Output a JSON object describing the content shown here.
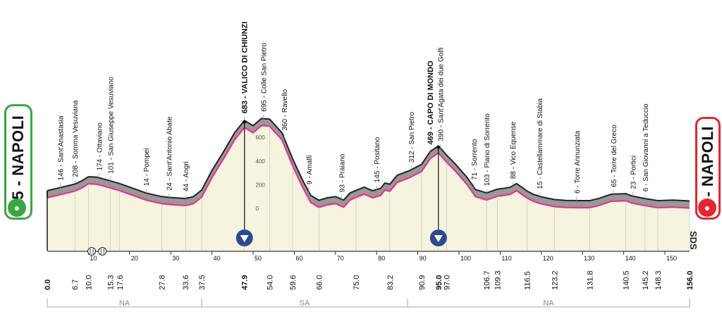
{
  "stage": {
    "start_label": "15 - NAPOLI",
    "finish_label": "3 - NAPOLI",
    "logo": "SDS"
  },
  "colors": {
    "profile_fill": "#999999",
    "profile_top": "#222222",
    "profile_body": "#f6f3df",
    "route_line": "#e8318f",
    "start_accent": "#3aa640",
    "finish_accent": "#e3262f",
    "marker": "#2c4a8f"
  },
  "chart_data": {
    "type": "area",
    "x_unit": "km",
    "x_ticks": [
      10,
      20,
      30,
      40,
      50,
      60,
      70,
      80,
      90,
      100,
      110,
      120,
      130,
      140,
      150
    ],
    "profile": [
      [
        0,
        90
      ],
      [
        3,
        115
      ],
      [
        6.7,
        146
      ],
      [
        8.5,
        175
      ],
      [
        10,
        208
      ],
      [
        12,
        205
      ],
      [
        15.3,
        174
      ],
      [
        17.6,
        150
      ],
      [
        20,
        120
      ],
      [
        24,
        70
      ],
      [
        27.8,
        40
      ],
      [
        30,
        32
      ],
      [
        33.6,
        24
      ],
      [
        35.5,
        40
      ],
      [
        37.5,
        95
      ],
      [
        40,
        260
      ],
      [
        43,
        430
      ],
      [
        45.5,
        580
      ],
      [
        47.9,
        683
      ],
      [
        50,
        640
      ],
      [
        52,
        700
      ],
      [
        54,
        695
      ],
      [
        57,
        580
      ],
      [
        59.6,
        360
      ],
      [
        62,
        180
      ],
      [
        64,
        50
      ],
      [
        66,
        9
      ],
      [
        68,
        30
      ],
      [
        70,
        40
      ],
      [
        72,
        10
      ],
      [
        73.5,
        70
      ],
      [
        75,
        93
      ],
      [
        77,
        120
      ],
      [
        79,
        90
      ],
      [
        81,
        110
      ],
      [
        82,
        155
      ],
      [
        83.2,
        145
      ],
      [
        85,
        220
      ],
      [
        88,
        260
      ],
      [
        90.9,
        312
      ],
      [
        93,
        420
      ],
      [
        95,
        469
      ],
      [
        97,
        390
      ],
      [
        99,
        320
      ],
      [
        102,
        200
      ],
      [
        104,
        100
      ],
      [
        106.7,
        71
      ],
      [
        109.3,
        103
      ],
      [
        111,
        110
      ],
      [
        112.5,
        120
      ],
      [
        114,
        150
      ],
      [
        116.5,
        88
      ],
      [
        118,
        60
      ],
      [
        120,
        38
      ],
      [
        123.2,
        15
      ],
      [
        126,
        8
      ],
      [
        129,
        6
      ],
      [
        131.8,
        6
      ],
      [
        134,
        25
      ],
      [
        137,
        60
      ],
      [
        140.5,
        65
      ],
      [
        142,
        45
      ],
      [
        145.2,
        23
      ],
      [
        148.3,
        6
      ],
      [
        152,
        10
      ],
      [
        156,
        3
      ]
    ],
    "km_labels": [
      {
        "km": 0.0,
        "text": "0.0",
        "bold": true
      },
      {
        "km": 6.7,
        "text": "6.7"
      },
      {
        "km": 10.0,
        "text": "10.0"
      },
      {
        "km": 15.3,
        "text": "15.3"
      },
      {
        "km": 17.6,
        "text": "17.6"
      },
      {
        "km": 27.8,
        "text": "27.8"
      },
      {
        "km": 33.6,
        "text": "33.6"
      },
      {
        "km": 37.5,
        "text": "37.5"
      },
      {
        "km": 47.9,
        "text": "47.9",
        "bold": true
      },
      {
        "km": 54.0,
        "text": "54.0"
      },
      {
        "km": 59.6,
        "text": "59.6"
      },
      {
        "km": 66.0,
        "text": "66.0"
      },
      {
        "km": 75.0,
        "text": "75.0"
      },
      {
        "km": 83.2,
        "text": "83.2"
      },
      {
        "km": 90.9,
        "text": "90.9"
      },
      {
        "km": 95.0,
        "text": "95.0",
        "bold": true
      },
      {
        "km": 97.0,
        "text": "97.0"
      },
      {
        "km": 106.7,
        "text": "106.7"
      },
      {
        "km": 109.3,
        "text": "109.3"
      },
      {
        "km": 116.5,
        "text": "116.5"
      },
      {
        "km": 123.2,
        "text": "123.2"
      },
      {
        "km": 131.8,
        "text": "131.8"
      },
      {
        "km": 140.5,
        "text": "140.5"
      },
      {
        "km": 145.2,
        "text": "145.2"
      },
      {
        "km": 148.3,
        "text": "148.3"
      },
      {
        "km": 156.0,
        "text": "156.0",
        "bold": true
      }
    ],
    "places": [
      {
        "km": 3.2,
        "text": "146 - Sant'Anastasia"
      },
      {
        "km": 6.7,
        "text": "208 - Somma Vesuviana"
      },
      {
        "km": 12.6,
        "text": "174 - Ottaviano"
      },
      {
        "km": 15.3,
        "text": "101 - San Giuseppe Vesuviano"
      },
      {
        "km": 24.0,
        "text": "14 - Pompei"
      },
      {
        "km": 29.5,
        "text": "24 - Sant'Antonio Abate"
      },
      {
        "km": 33.6,
        "text": "44 - Angri"
      },
      {
        "km": 47.9,
        "text": "683 - VALICO DI CHIUNZI",
        "bold": true
      },
      {
        "km": 52.5,
        "text": "695 - Colle San Pietro"
      },
      {
        "km": 57.5,
        "text": "360 - Ravello"
      },
      {
        "km": 63.5,
        "text": "9 - Amalfi"
      },
      {
        "km": 71.5,
        "text": "93 - Praiano"
      },
      {
        "km": 80.0,
        "text": "145 - Positano"
      },
      {
        "km": 88.4,
        "text": "312 - San Pietro"
      },
      {
        "km": 93.0,
        "text": "469 - CAPO DI MONDO",
        "bold": true
      },
      {
        "km": 95.5,
        "text": "390 - Sant'Agata dei due Golfi"
      },
      {
        "km": 103.6,
        "text": "71 - Sorrento"
      },
      {
        "km": 106.7,
        "text": "103 - Piano di Sorrento"
      },
      {
        "km": 113.0,
        "text": "88 - Vico Equense"
      },
      {
        "km": 119.5,
        "text": "15 - Castellammare di Stabia"
      },
      {
        "km": 128.6,
        "text": "6 - Torre Annunziata"
      },
      {
        "km": 137.5,
        "text": "65 - Torre del Greco"
      },
      {
        "km": 142.2,
        "text": "23 - Portici"
      },
      {
        "km": 145.2,
        "text": "6 - San Giovanni a Teduccio"
      }
    ],
    "altitude_ticks": [
      {
        "alt": 0,
        "text": "0"
      },
      {
        "alt": 200,
        "text": "200"
      },
      {
        "alt": 400,
        "text": "400"
      },
      {
        "alt": 600,
        "text": "600"
      }
    ],
    "climbs": [
      {
        "km": 47.9
      },
      {
        "km": 95.0
      }
    ],
    "feed_zones": [
      {
        "km": 10.8
      },
      {
        "km": 13.4
      }
    ],
    "regions": [
      {
        "from": 0,
        "to": 37.5,
        "text": "NA"
      },
      {
        "from": 37.5,
        "to": 87.5,
        "text": "SA"
      },
      {
        "from": 87.5,
        "to": 156,
        "text": "NA"
      }
    ]
  }
}
